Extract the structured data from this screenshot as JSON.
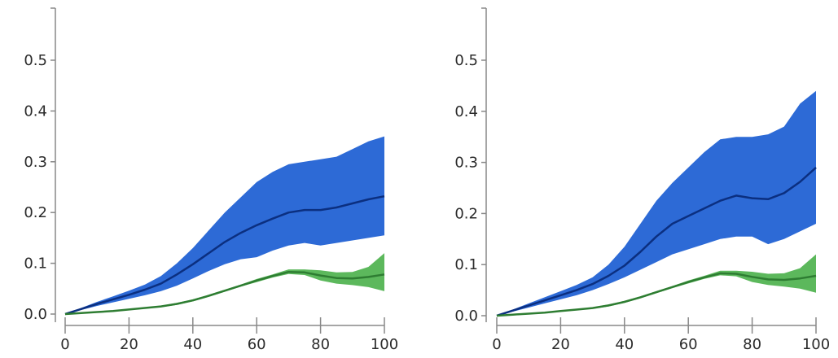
{
  "colors": {
    "blue_band": "#2d6ad6",
    "blue_line": "#0b2f80",
    "green_band": "#5cb85c",
    "green_line": "#2e7d32",
    "axis": "#888888",
    "text": "#2b2b2b"
  },
  "chart_data": [
    {
      "type": "area",
      "title": "",
      "xlabel": "",
      "ylabel": "",
      "xlim": [
        0,
        100
      ],
      "ylim": [
        0,
        0.6
      ],
      "xticks": [
        "0",
        "20",
        "40",
        "60",
        "80",
        "100"
      ],
      "yticks": [
        "0.0",
        "0.1",
        "0.2",
        "0.3",
        "0.4",
        "0.5"
      ],
      "grid": false,
      "series": [
        {
          "color": "#2d6ad6",
          "line_color": "#0b2f80",
          "x": [
            0,
            5,
            10,
            15,
            20,
            25,
            30,
            35,
            40,
            45,
            50,
            55,
            60,
            65,
            70,
            75,
            80,
            85,
            90,
            95,
            100
          ],
          "mean": [
            0,
            0.01,
            0.02,
            0.029,
            0.038,
            0.048,
            0.06,
            0.078,
            0.098,
            0.12,
            0.142,
            0.16,
            0.175,
            0.188,
            0.2,
            0.205,
            0.205,
            0.21,
            0.218,
            0.226,
            0.232
          ],
          "lower": [
            0,
            0.008,
            0.016,
            0.023,
            0.03,
            0.037,
            0.045,
            0.056,
            0.07,
            0.085,
            0.098,
            0.108,
            0.112,
            0.125,
            0.135,
            0.14,
            0.135,
            0.14,
            0.145,
            0.15,
            0.155
          ],
          "upper": [
            0,
            0.012,
            0.024,
            0.035,
            0.046,
            0.058,
            0.075,
            0.1,
            0.13,
            0.165,
            0.2,
            0.23,
            0.26,
            0.28,
            0.295,
            0.3,
            0.305,
            0.31,
            0.325,
            0.34,
            0.35
          ]
        },
        {
          "color": "#5cb85c",
          "line_color": "#2e7d32",
          "x": [
            0,
            5,
            10,
            15,
            20,
            25,
            30,
            35,
            40,
            45,
            50,
            55,
            60,
            65,
            70,
            75,
            80,
            85,
            90,
            95,
            100
          ],
          "mean": [
            0,
            0.002,
            0.004,
            0.006,
            0.009,
            0.012,
            0.015,
            0.02,
            0.027,
            0.036,
            0.046,
            0.056,
            0.066,
            0.075,
            0.083,
            0.082,
            0.076,
            0.071,
            0.07,
            0.073,
            0.078
          ],
          "lower": [
            0,
            0.0015,
            0.0035,
            0.0055,
            0.008,
            0.011,
            0.0135,
            0.018,
            0.025,
            0.034,
            0.044,
            0.054,
            0.063,
            0.072,
            0.079,
            0.077,
            0.066,
            0.06,
            0.057,
            0.053,
            0.045
          ],
          "upper": [
            0,
            0.0025,
            0.0045,
            0.0065,
            0.01,
            0.013,
            0.0165,
            0.022,
            0.029,
            0.038,
            0.048,
            0.058,
            0.069,
            0.078,
            0.088,
            0.088,
            0.086,
            0.082,
            0.083,
            0.093,
            0.12
          ]
        }
      ]
    },
    {
      "type": "area",
      "title": "",
      "xlabel": "",
      "ylabel": "",
      "xlim": [
        0,
        100
      ],
      "ylim": [
        0,
        0.6
      ],
      "xticks": [
        "0",
        "20",
        "40",
        "60",
        "80",
        "100"
      ],
      "yticks": [
        "0.0",
        "0.1",
        "0.2",
        "0.3",
        "0.4",
        "0.5"
      ],
      "grid": false,
      "series": [
        {
          "color": "#2d6ad6",
          "line_color": "#0b2f80",
          "x": [
            0,
            5,
            10,
            15,
            20,
            25,
            30,
            35,
            40,
            45,
            50,
            55,
            60,
            65,
            70,
            75,
            80,
            85,
            90,
            95,
            100
          ],
          "mean": [
            0,
            0.01,
            0.02,
            0.03,
            0.04,
            0.05,
            0.062,
            0.078,
            0.098,
            0.125,
            0.155,
            0.18,
            0.195,
            0.21,
            0.225,
            0.235,
            0.23,
            0.228,
            0.24,
            0.262,
            0.29
          ],
          "lower": [
            0,
            0.008,
            0.016,
            0.024,
            0.032,
            0.04,
            0.05,
            0.062,
            0.075,
            0.09,
            0.105,
            0.12,
            0.13,
            0.14,
            0.15,
            0.155,
            0.155,
            0.14,
            0.15,
            0.165,
            0.18
          ],
          "upper": [
            0,
            0.012,
            0.024,
            0.036,
            0.048,
            0.06,
            0.075,
            0.1,
            0.135,
            0.18,
            0.225,
            0.26,
            0.29,
            0.32,
            0.345,
            0.35,
            0.35,
            0.355,
            0.37,
            0.415,
            0.44
          ]
        },
        {
          "color": "#5cb85c",
          "line_color": "#2e7d32",
          "x": [
            0,
            5,
            10,
            15,
            20,
            25,
            30,
            35,
            40,
            45,
            50,
            55,
            60,
            65,
            70,
            75,
            80,
            85,
            90,
            95,
            100
          ],
          "mean": [
            0,
            0.002,
            0.004,
            0.006,
            0.009,
            0.012,
            0.015,
            0.02,
            0.027,
            0.036,
            0.046,
            0.056,
            0.066,
            0.075,
            0.083,
            0.082,
            0.076,
            0.071,
            0.07,
            0.073,
            0.078
          ],
          "lower": [
            0,
            0.0015,
            0.0035,
            0.0055,
            0.008,
            0.011,
            0.0135,
            0.018,
            0.025,
            0.034,
            0.044,
            0.054,
            0.063,
            0.072,
            0.079,
            0.077,
            0.066,
            0.06,
            0.057,
            0.053,
            0.045
          ],
          "upper": [
            0,
            0.0025,
            0.0045,
            0.0065,
            0.01,
            0.013,
            0.0165,
            0.022,
            0.029,
            0.038,
            0.048,
            0.058,
            0.069,
            0.078,
            0.088,
            0.088,
            0.086,
            0.082,
            0.083,
            0.093,
            0.12
          ]
        }
      ]
    }
  ]
}
